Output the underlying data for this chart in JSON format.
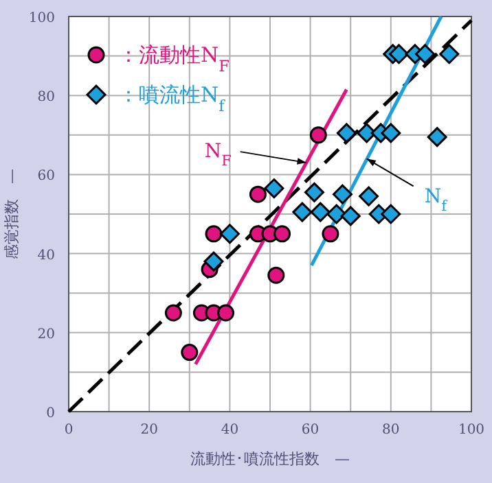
{
  "chart_data": {
    "type": "scatter",
    "xlabel": "流動性･噴流性指数　—",
    "ylabel": "感覚指数　—",
    "xlim": [
      0,
      100
    ],
    "ylim": [
      0,
      100
    ],
    "xticks": [
      0,
      {
        "value": 10,
        "label": null
      },
      20,
      {
        "value": 30,
        "label": null
      },
      40,
      {
        "value": 50,
        "label": null
      },
      60,
      {
        "value": 70,
        "label": null
      },
      80,
      {
        "value": 90,
        "label": null
      },
      100
    ],
    "yticks": [
      0,
      {
        "value": 10,
        "label": null
      },
      20,
      {
        "value": 30,
        "label": null
      },
      40,
      {
        "value": 50,
        "label": null
      },
      60,
      {
        "value": 70,
        "label": null
      },
      80,
      {
        "value": 90,
        "label": null
      },
      100
    ],
    "grid": true,
    "legend": "top left",
    "series": [
      {
        "type": "line",
        "color": "#000000",
        "line_style": "dashed",
        "marker": "none",
        "x": [
          0,
          100
        ],
        "values": [
          0,
          99
        ]
      },
      {
        "type": "line",
        "color": "#e0147f",
        "line_style": "solid",
        "marker": "none",
        "x": [
          31.5,
          69
        ],
        "values": [
          12,
          81.5
        ]
      },
      {
        "type": "line",
        "color": "#1ea0dc",
        "line_style": "solid",
        "marker": "none",
        "x": [
          60.3,
          92.5
        ],
        "values": [
          37,
          100
        ]
      },
      {
        "name": "：流動性N$_{F}$",
        "color": "#e0147f",
        "marker": "circle",
        "x": [
          26,
          30,
          33,
          36,
          39,
          35,
          36,
          47,
          50,
          53,
          47,
          51.5,
          65,
          62
        ],
        "values": [
          25,
          15,
          25,
          25,
          25,
          36,
          45,
          45,
          45,
          45,
          55,
          34.5,
          45,
          70
        ]
      },
      {
        "name": "：噴流性N$_{f}$",
        "color": "#1ea0dc",
        "marker": "diamond",
        "x": [
          36,
          40,
          51,
          58,
          61,
          62.5,
          66.5,
          68,
          70,
          74.5,
          77,
          80,
          69,
          74,
          77.5,
          80,
          80.5,
          82,
          86,
          88.5,
          94.5,
          91.5
        ],
        "values": [
          38,
          45,
          56.5,
          50.5,
          55.5,
          50.5,
          50,
          55,
          49.5,
          54.5,
          50,
          50,
          70.5,
          70.5,
          70.5,
          70.5,
          90.5,
          90.5,
          90.5,
          90.5,
          90.5,
          69.5
        ]
      }
    ],
    "annotations": [
      {
        "text": "N$_{F}$",
        "x": 59,
        "y": 63
      },
      {
        "text": "N$_{f}$",
        "x": 74,
        "y": 64
      }
    ]
  }
}
